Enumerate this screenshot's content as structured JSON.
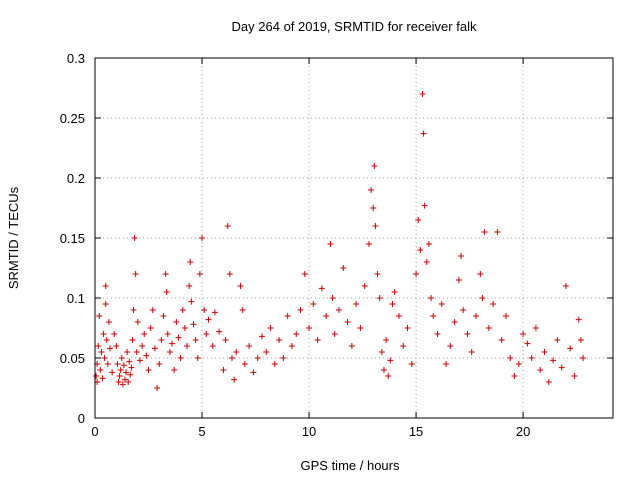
{
  "chart_data": {
    "type": "scatter",
    "title": "Day 264 of 2019, SRMTID for receiver falk",
    "xlabel": "GPS time / hours",
    "ylabel": "SRMTID / TECUs",
    "xlim": [
      0,
      24.2
    ],
    "ylim": [
      0,
      0.3
    ],
    "x_ticks": [
      0,
      5,
      10,
      15,
      20
    ],
    "y_ticks": [
      0,
      0.05,
      0.1,
      0.15,
      0.2,
      0.25,
      0.3
    ],
    "x_tick_labels": [
      "0",
      "5",
      "10",
      "15",
      "20"
    ],
    "y_tick_labels": [
      "0",
      "0.05",
      "0.1",
      "0.15",
      "0.2",
      "0.25",
      "0.3"
    ],
    "grid": true,
    "marker": "+",
    "series_color": "#cc0000",
    "series": [
      {
        "name": "SRMTID",
        "points": [
          [
            0.05,
            0.035
          ],
          [
            0.1,
            0.03
          ],
          [
            0.1,
            0.045
          ],
          [
            0.15,
            0.06
          ],
          [
            0.2,
            0.085
          ],
          [
            0.25,
            0.04
          ],
          [
            0.3,
            0.055
          ],
          [
            0.35,
            0.033
          ],
          [
            0.4,
            0.07
          ],
          [
            0.45,
            0.05
          ],
          [
            0.5,
            0.095
          ],
          [
            0.5,
            0.11
          ],
          [
            0.55,
            0.065
          ],
          [
            0.6,
            0.045
          ],
          [
            0.65,
            0.08
          ],
          [
            0.7,
            0.058
          ],
          [
            0.8,
            0.038
          ],
          [
            0.9,
            0.07
          ],
          [
            1.0,
            0.06
          ],
          [
            1.05,
            0.045
          ],
          [
            1.1,
            0.03
          ],
          [
            1.15,
            0.035
          ],
          [
            1.2,
            0.04
          ],
          [
            1.25,
            0.05
          ],
          [
            1.3,
            0.028
          ],
          [
            1.35,
            0.044
          ],
          [
            1.4,
            0.032
          ],
          [
            1.45,
            0.038
          ],
          [
            1.5,
            0.055
          ],
          [
            1.55,
            0.03
          ],
          [
            1.6,
            0.047
          ],
          [
            1.65,
            0.036
          ],
          [
            1.7,
            0.042
          ],
          [
            1.75,
            0.065
          ],
          [
            1.8,
            0.09
          ],
          [
            1.85,
            0.15
          ],
          [
            1.9,
            0.12
          ],
          [
            1.95,
            0.055
          ],
          [
            2.0,
            0.08
          ],
          [
            2.1,
            0.048
          ],
          [
            2.2,
            0.06
          ],
          [
            2.3,
            0.07
          ],
          [
            2.4,
            0.052
          ],
          [
            2.5,
            0.04
          ],
          [
            2.6,
            0.075
          ],
          [
            2.7,
            0.09
          ],
          [
            2.8,
            0.058
          ],
          [
            2.9,
            0.025
          ],
          [
            3.0,
            0.045
          ],
          [
            3.1,
            0.065
          ],
          [
            3.2,
            0.085
          ],
          [
            3.3,
            0.12
          ],
          [
            3.35,
            0.105
          ],
          [
            3.4,
            0.07
          ],
          [
            3.5,
            0.055
          ],
          [
            3.6,
            0.062
          ],
          [
            3.7,
            0.04
          ],
          [
            3.8,
            0.08
          ],
          [
            3.9,
            0.067
          ],
          [
            4.0,
            0.05
          ],
          [
            4.1,
            0.09
          ],
          [
            4.2,
            0.075
          ],
          [
            4.3,
            0.06
          ],
          [
            4.4,
            0.11
          ],
          [
            4.45,
            0.13
          ],
          [
            4.5,
            0.097
          ],
          [
            4.6,
            0.078
          ],
          [
            4.7,
            0.065
          ],
          [
            4.8,
            0.05
          ],
          [
            4.9,
            0.12
          ],
          [
            5.0,
            0.15
          ],
          [
            5.1,
            0.09
          ],
          [
            5.2,
            0.07
          ],
          [
            5.3,
            0.082
          ],
          [
            5.5,
            0.06
          ],
          [
            5.6,
            0.088
          ],
          [
            5.8,
            0.072
          ],
          [
            6.0,
            0.04
          ],
          [
            6.1,
            0.065
          ],
          [
            6.2,
            0.16
          ],
          [
            6.3,
            0.12
          ],
          [
            6.4,
            0.05
          ],
          [
            6.5,
            0.032
          ],
          [
            6.6,
            0.055
          ],
          [
            6.8,
            0.11
          ],
          [
            6.9,
            0.09
          ],
          [
            7.0,
            0.045
          ],
          [
            7.2,
            0.06
          ],
          [
            7.4,
            0.038
          ],
          [
            7.6,
            0.05
          ],
          [
            7.8,
            0.068
          ],
          [
            8.0,
            0.055
          ],
          [
            8.2,
            0.075
          ],
          [
            8.4,
            0.045
          ],
          [
            8.6,
            0.065
          ],
          [
            8.8,
            0.05
          ],
          [
            9.0,
            0.085
          ],
          [
            9.2,
            0.06
          ],
          [
            9.4,
            0.07
          ],
          [
            9.6,
            0.09
          ],
          [
            9.8,
            0.12
          ],
          [
            10.0,
            0.075
          ],
          [
            10.2,
            0.095
          ],
          [
            10.4,
            0.065
          ],
          [
            10.6,
            0.108
          ],
          [
            10.8,
            0.085
          ],
          [
            11.0,
            0.145
          ],
          [
            11.1,
            0.1
          ],
          [
            11.2,
            0.07
          ],
          [
            11.4,
            0.09
          ],
          [
            11.6,
            0.125
          ],
          [
            11.8,
            0.08
          ],
          [
            12.0,
            0.06
          ],
          [
            12.2,
            0.095
          ],
          [
            12.4,
            0.075
          ],
          [
            12.6,
            0.11
          ],
          [
            12.8,
            0.145
          ],
          [
            12.9,
            0.19
          ],
          [
            13.0,
            0.175
          ],
          [
            13.05,
            0.21
          ],
          [
            13.1,
            0.16
          ],
          [
            13.2,
            0.12
          ],
          [
            13.3,
            0.1
          ],
          [
            13.4,
            0.055
          ],
          [
            13.5,
            0.04
          ],
          [
            13.6,
            0.065
          ],
          [
            13.7,
            0.035
          ],
          [
            13.8,
            0.048
          ],
          [
            13.9,
            0.095
          ],
          [
            14.0,
            0.105
          ],
          [
            14.2,
            0.085
          ],
          [
            14.4,
            0.06
          ],
          [
            14.6,
            0.075
          ],
          [
            14.8,
            0.045
          ],
          [
            15.0,
            0.12
          ],
          [
            15.1,
            0.165
          ],
          [
            15.2,
            0.14
          ],
          [
            15.3,
            0.27
          ],
          [
            15.35,
            0.237
          ],
          [
            15.4,
            0.177
          ],
          [
            15.5,
            0.13
          ],
          [
            15.6,
            0.145
          ],
          [
            15.7,
            0.1
          ],
          [
            15.8,
            0.085
          ],
          [
            16.0,
            0.07
          ],
          [
            16.2,
            0.095
          ],
          [
            16.4,
            0.045
          ],
          [
            16.6,
            0.06
          ],
          [
            16.8,
            0.08
          ],
          [
            17.0,
            0.115
          ],
          [
            17.1,
            0.135
          ],
          [
            17.2,
            0.09
          ],
          [
            17.4,
            0.07
          ],
          [
            17.6,
            0.055
          ],
          [
            17.8,
            0.085
          ],
          [
            18.0,
            0.12
          ],
          [
            18.1,
            0.1
          ],
          [
            18.2,
            0.155
          ],
          [
            18.4,
            0.075
          ],
          [
            18.6,
            0.095
          ],
          [
            18.8,
            0.155
          ],
          [
            19.0,
            0.065
          ],
          [
            19.2,
            0.085
          ],
          [
            19.4,
            0.05
          ],
          [
            19.6,
            0.035
          ],
          [
            19.8,
            0.045
          ],
          [
            20.0,
            0.07
          ],
          [
            20.2,
            0.062
          ],
          [
            20.4,
            0.05
          ],
          [
            20.6,
            0.075
          ],
          [
            20.8,
            0.04
          ],
          [
            21.0,
            0.055
          ],
          [
            21.2,
            0.03
          ],
          [
            21.4,
            0.048
          ],
          [
            21.6,
            0.065
          ],
          [
            21.8,
            0.042
          ],
          [
            22.0,
            0.11
          ],
          [
            22.2,
            0.058
          ],
          [
            22.4,
            0.035
          ],
          [
            22.6,
            0.082
          ],
          [
            22.7,
            0.065
          ],
          [
            22.8,
            0.05
          ]
        ]
      }
    ]
  }
}
